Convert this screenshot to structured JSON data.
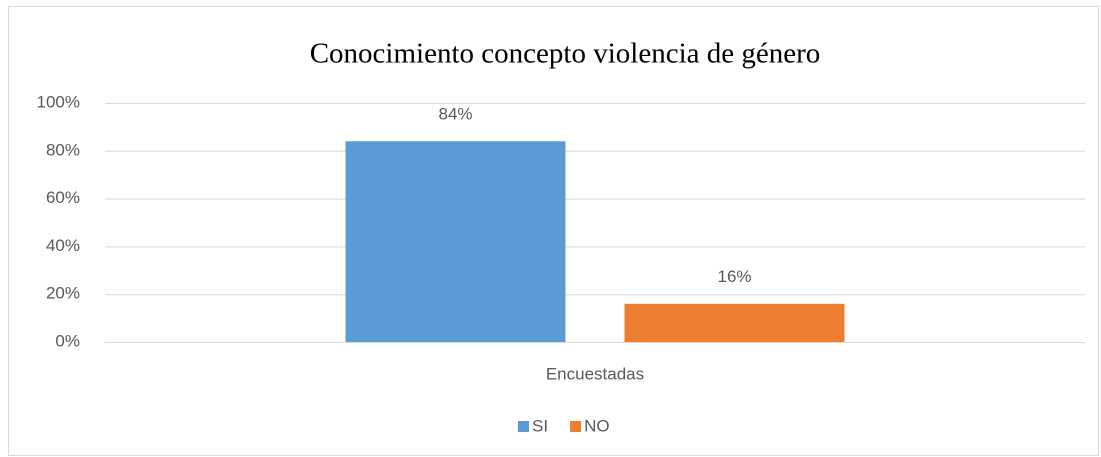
{
  "chart_data": {
    "type": "bar",
    "title": "Conocimiento concepto violencia de género",
    "categories": [
      "Encuestadas"
    ],
    "series": [
      {
        "name": "SI",
        "color": "#5b9bd5",
        "values": [
          84
        ],
        "value_labels": [
          "84%"
        ]
      },
      {
        "name": "NO",
        "color": "#ed7d31",
        "values": [
          16
        ],
        "value_labels": [
          "16%"
        ]
      }
    ],
    "ylim": [
      0,
      100
    ],
    "yticks": [
      {
        "value": 0,
        "label": "0%"
      },
      {
        "value": 20,
        "label": "20%"
      },
      {
        "value": 40,
        "label": "40%"
      },
      {
        "value": 60,
        "label": "60%"
      },
      {
        "value": 80,
        "label": "80%"
      },
      {
        "value": 100,
        "label": "100%"
      }
    ],
    "grid": true,
    "legend": "bottom"
  }
}
